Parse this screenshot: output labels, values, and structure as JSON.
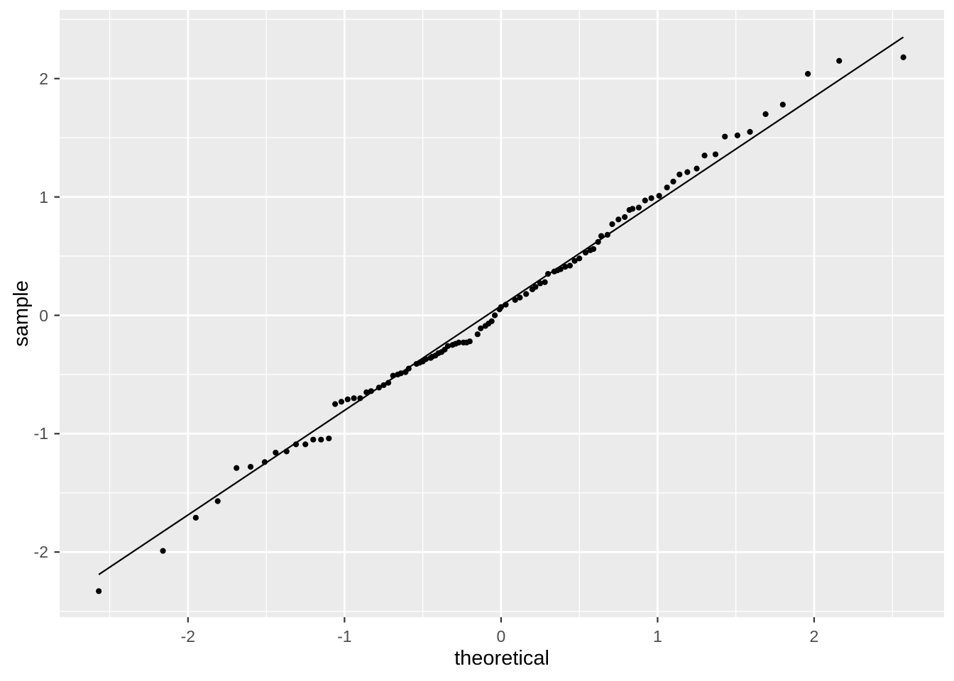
{
  "chart_data": {
    "type": "scatter",
    "title": "",
    "subtitle": "",
    "xlabel": "theoretical",
    "ylabel": "sample",
    "description": "Normal Q-Q plot with reference line (ggplot2 theme_gray style)",
    "xlim": [
      -2.82,
      2.83
    ],
    "ylim": [
      -2.55,
      2.58
    ],
    "x_major_ticks": [
      -2,
      -1,
      0,
      1,
      2
    ],
    "y_major_ticks": [
      -2,
      -1,
      0,
      1,
      2
    ],
    "x_minor_ticks": [
      -2.5,
      -1.5,
      -0.5,
      0.5,
      1.5,
      2.5
    ],
    "y_minor_ticks": [
      -2.5,
      -1.5,
      -0.5,
      0.5,
      1.5,
      2.5
    ],
    "grid": true,
    "legend_position": "none",
    "colors": {
      "background": "#FFFFFF",
      "panel": "#EBEBEB",
      "grid": "#FFFFFF",
      "point": "#000000",
      "ref_line": "#000000",
      "axis_text": "#4D4D4D",
      "tick_mark": "#333333",
      "axis_title": "#000000"
    },
    "ref_line": {
      "x1": -2.57,
      "y1": -2.19,
      "x2": 2.57,
      "y2": 2.35
    },
    "points": [
      [
        -2.57,
        -2.33
      ],
      [
        -2.16,
        -1.99
      ],
      [
        -1.95,
        -1.71
      ],
      [
        -1.81,
        -1.57
      ],
      [
        -1.69,
        -1.29
      ],
      [
        -1.6,
        -1.28
      ],
      [
        -1.51,
        -1.24
      ],
      [
        -1.44,
        -1.16
      ],
      [
        -1.37,
        -1.15
      ],
      [
        -1.31,
        -1.09
      ],
      [
        -1.25,
        -1.09
      ],
      [
        -1.2,
        -1.05
      ],
      [
        -1.15,
        -1.05
      ],
      [
        -1.1,
        -1.04
      ],
      [
        -1.06,
        -0.75
      ],
      [
        -1.02,
        -0.73
      ],
      [
        -0.98,
        -0.71
      ],
      [
        -0.94,
        -0.7
      ],
      [
        -0.9,
        -0.7
      ],
      [
        -0.86,
        -0.65
      ],
      [
        -0.83,
        -0.64
      ],
      [
        -0.78,
        -0.61
      ],
      [
        -0.75,
        -0.59
      ],
      [
        -0.72,
        -0.57
      ],
      [
        -0.69,
        -0.51
      ],
      [
        -0.66,
        -0.5
      ],
      [
        -0.64,
        -0.49
      ],
      [
        -0.61,
        -0.48
      ],
      [
        -0.59,
        -0.45
      ],
      [
        -0.54,
        -0.41
      ],
      [
        -0.52,
        -0.4
      ],
      [
        -0.5,
        -0.39
      ],
      [
        -0.48,
        -0.37
      ],
      [
        -0.45,
        -0.36
      ],
      [
        -0.44,
        -0.35
      ],
      [
        -0.42,
        -0.34
      ],
      [
        -0.4,
        -0.32
      ],
      [
        -0.38,
        -0.31
      ],
      [
        -0.36,
        -0.29
      ],
      [
        -0.34,
        -0.26
      ],
      [
        -0.31,
        -0.25
      ],
      [
        -0.29,
        -0.24
      ],
      [
        -0.27,
        -0.23
      ],
      [
        -0.24,
        -0.23
      ],
      [
        -0.22,
        -0.23
      ],
      [
        -0.2,
        -0.22
      ],
      [
        -0.15,
        -0.16
      ],
      [
        -0.13,
        -0.11
      ],
      [
        -0.1,
        -0.09
      ],
      [
        -0.08,
        -0.07
      ],
      [
        -0.06,
        -0.05
      ],
      [
        -0.04,
        0.0
      ],
      [
        -0.01,
        0.05
      ],
      [
        0.0,
        0.07
      ],
      [
        0.03,
        0.09
      ],
      [
        0.09,
        0.13
      ],
      [
        0.12,
        0.15
      ],
      [
        0.16,
        0.18
      ],
      [
        0.2,
        0.22
      ],
      [
        0.22,
        0.24
      ],
      [
        0.25,
        0.27
      ],
      [
        0.28,
        0.28
      ],
      [
        0.3,
        0.35
      ],
      [
        0.34,
        0.37
      ],
      [
        0.36,
        0.38
      ],
      [
        0.38,
        0.39
      ],
      [
        0.41,
        0.41
      ],
      [
        0.44,
        0.42
      ],
      [
        0.47,
        0.46
      ],
      [
        0.5,
        0.48
      ],
      [
        0.54,
        0.53
      ],
      [
        0.57,
        0.55
      ],
      [
        0.59,
        0.56
      ],
      [
        0.62,
        0.62
      ],
      [
        0.64,
        0.67
      ],
      [
        0.68,
        0.68
      ],
      [
        0.71,
        0.77
      ],
      [
        0.75,
        0.81
      ],
      [
        0.79,
        0.83
      ],
      [
        0.82,
        0.89
      ],
      [
        0.84,
        0.9
      ],
      [
        0.88,
        0.91
      ],
      [
        0.92,
        0.97
      ],
      [
        0.96,
        0.99
      ],
      [
        1.01,
        1.01
      ],
      [
        1.06,
        1.08
      ],
      [
        1.1,
        1.13
      ],
      [
        1.14,
        1.19
      ],
      [
        1.19,
        1.21
      ],
      [
        1.25,
        1.24
      ],
      [
        1.3,
        1.35
      ],
      [
        1.37,
        1.36
      ],
      [
        1.43,
        1.51
      ],
      [
        1.51,
        1.52
      ],
      [
        1.59,
        1.55
      ],
      [
        1.69,
        1.7
      ],
      [
        1.8,
        1.78
      ],
      [
        1.96,
        2.04
      ],
      [
        2.16,
        2.15
      ],
      [
        2.57,
        2.18
      ]
    ]
  }
}
